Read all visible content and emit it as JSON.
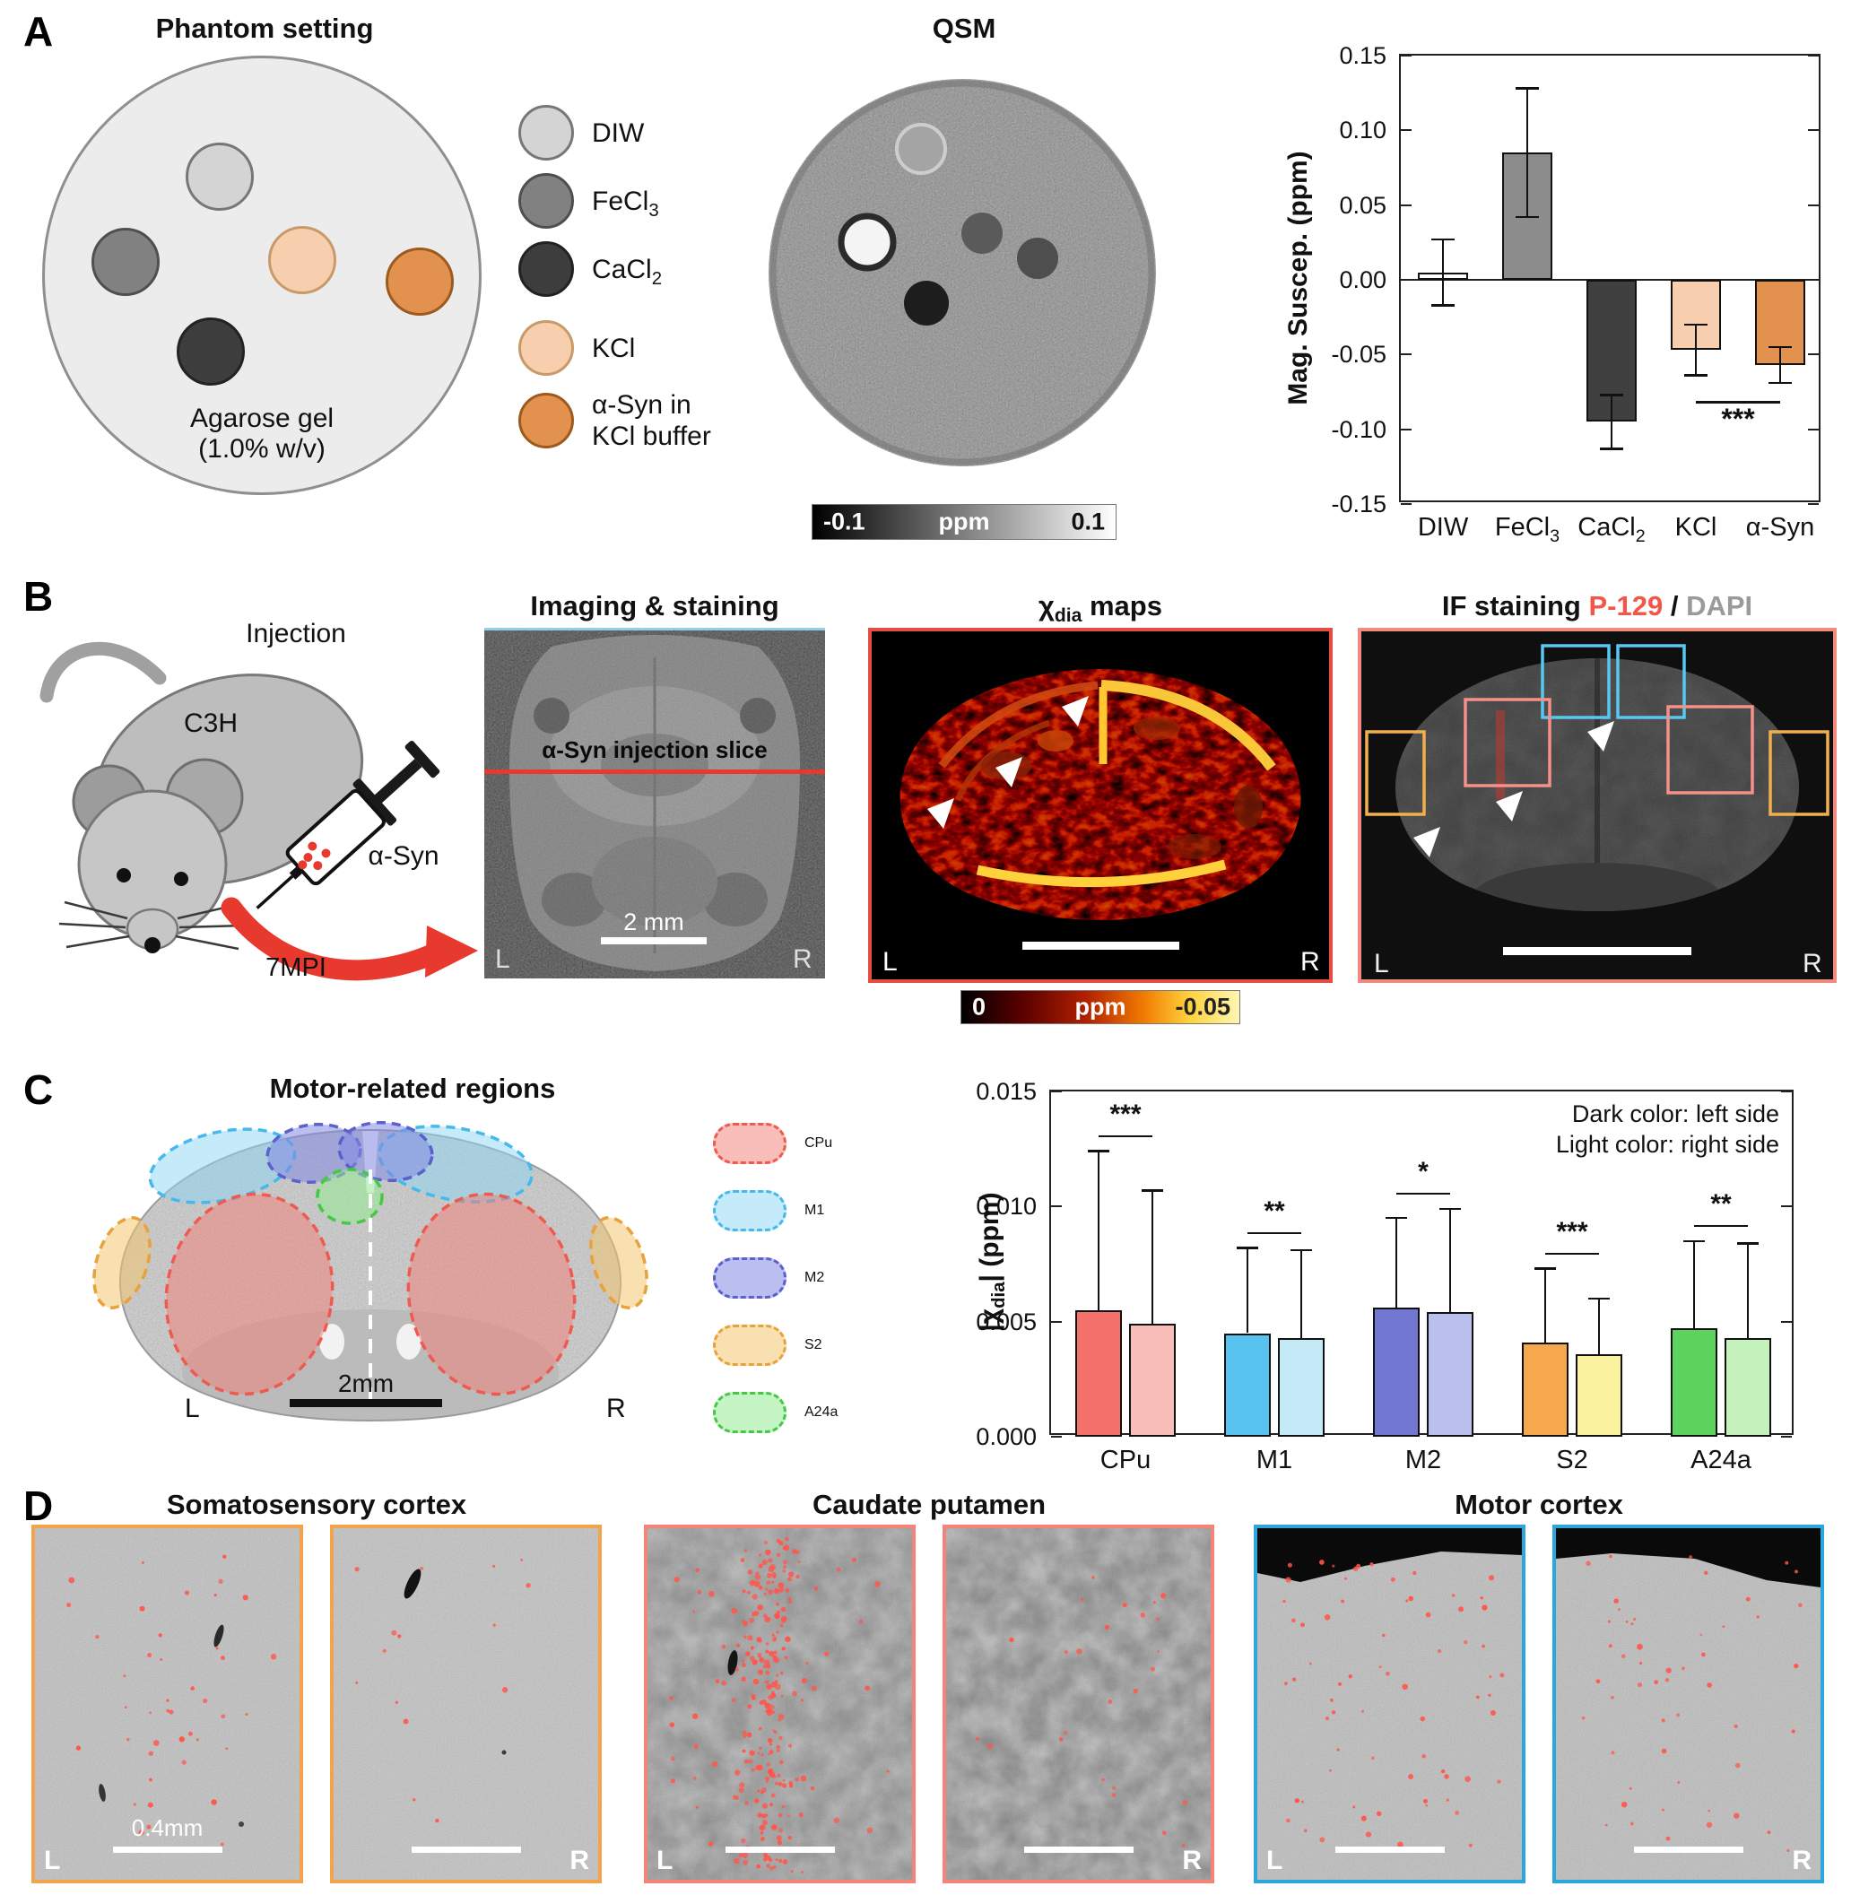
{
  "panels": {
    "a": "A",
    "b": "B",
    "c": "C",
    "d": "D"
  },
  "panelA": {
    "phantom_title": "Phantom setting",
    "gel_line1": "Agarose gel",
    "gel_line2": "(1.0% w/v)",
    "legend": [
      {
        "base": "DIW",
        "sub": "",
        "line2": "",
        "color": "#d4d4d4",
        "edge": "#777777"
      },
      {
        "base": "FeCl",
        "sub": "3",
        "line2": "",
        "color": "#818181",
        "edge": "#4f4f4f"
      },
      {
        "base": "CaCl",
        "sub": "2",
        "line2": "",
        "color": "#3d3d3d",
        "edge": "#222222"
      },
      {
        "base": "KCl",
        "sub": "",
        "line2": "",
        "color": "#f8cfae",
        "edge": "#c89a6a"
      },
      {
        "base": "α-Syn in",
        "sub": "",
        "line2": "KCl buffer",
        "color": "#e2914f",
        "edge": "#9c5a1e"
      }
    ],
    "qsm_title": "QSM",
    "qsm_colorbar": {
      "min": "-0.1",
      "unit": "ppm",
      "max": "0.1"
    }
  },
  "panelB": {
    "injection": "Injection",
    "strain": "C3H",
    "asyn": "α-Syn",
    "timepoint": "7MPI",
    "mri_title": "Imaging & staining",
    "slice_label": "α-Syn injection slice",
    "mri_left": "L",
    "mri_right": "R",
    "mri_scale": "2 mm",
    "chi_title_pre": "χ",
    "chi_title_sub": "dia",
    "chi_title_post": " maps",
    "chi_left": "L",
    "chi_right": "R",
    "chi_colorbar": {
      "min": "0",
      "unit": "ppm",
      "max": "-0.05"
    },
    "if_title_pre": "IF staining ",
    "if_title_red": "P-129",
    "if_title_sep": " / ",
    "if_title_gray": "DAPI",
    "if_left": "L",
    "if_right": "R"
  },
  "panelC": {
    "title": "Motor-related regions",
    "left": "L",
    "right": "R",
    "scale": "2mm",
    "legend": [
      {
        "name": "CPu",
        "stroke": "#ee5a50",
        "fill": "rgba(243,125,117,0.5)"
      },
      {
        "name": "M1",
        "stroke": "#45b9ec",
        "fill": "rgba(140,216,246,0.5)"
      },
      {
        "name": "M2",
        "stroke": "#5a60cc",
        "fill": "rgba(132,138,228,0.55)"
      },
      {
        "name": "S2",
        "stroke": "#e8a23c",
        "fill": "rgba(243,198,112,0.55)"
      },
      {
        "name": "A24a",
        "stroke": "#46c846",
        "fill": "rgba(150,235,150,0.55)"
      }
    ]
  },
  "panelD": {
    "groups": [
      {
        "title": "Somatosensory cortex",
        "border": "#f2a44c",
        "images": [
          {
            "label": "L",
            "scale": "0.4mm",
            "dots": 42,
            "band": false,
            "seed": 11
          },
          {
            "label": "R",
            "scale": "",
            "dots": 15,
            "band": false,
            "seed": 22
          }
        ]
      },
      {
        "title": "Caudate putamen",
        "border": "#f4837a",
        "images": [
          {
            "label": "L",
            "scale": "",
            "dots": 260,
            "band": true,
            "seed": 33
          },
          {
            "label": "R",
            "scale": "",
            "dots": 26,
            "band": false,
            "seed": 44
          }
        ]
      },
      {
        "title": "Motor cortex",
        "border": "#2ba7de",
        "images": [
          {
            "label": "L",
            "scale": "",
            "dots": 70,
            "band": false,
            "seed": 55
          },
          {
            "label": "R",
            "scale": "",
            "dots": 52,
            "band": false,
            "seed": 66
          }
        ]
      }
    ]
  },
  "chart_data": [
    {
      "type": "bar",
      "title": "",
      "ylabel": "Mag. Suscep. (ppm)",
      "ylim": [
        -0.15,
        0.15
      ],
      "yticks": [
        "0.15",
        "0.10",
        "0.05",
        "0.00",
        "-0.05",
        "-0.10",
        "-0.15"
      ],
      "categories": [
        {
          "base": "DIW",
          "sub": ""
        },
        {
          "base": "FeCl",
          "sub": "3"
        },
        {
          "base": "CaCl",
          "sub": "2"
        },
        {
          "base": "KCl",
          "sub": ""
        },
        {
          "base": "α-Syn",
          "sub": ""
        }
      ],
      "values": [
        0.005,
        0.085,
        -0.095,
        -0.047,
        -0.057
      ],
      "errors": [
        0.022,
        0.043,
        0.018,
        0.017,
        0.012
      ],
      "bar_colors": [
        "#ffffff",
        "#8c8c8c",
        "#404040",
        "#f8cfae",
        "#e2914f"
      ],
      "significance": {
        "stars": "***",
        "from": 3,
        "to": 4
      }
    },
    {
      "type": "grouped-bar",
      "ylabel_pre": "|χ",
      "ylabel_sub": "dia",
      "ylabel_post": "| (ppm)",
      "ylim": [
        0,
        0.015
      ],
      "yticks": [
        "0.015",
        "0.010",
        "0.005",
        "0.000"
      ],
      "categories": [
        "CPu",
        "M1",
        "M2",
        "S2",
        "A24a"
      ],
      "series": [
        {
          "name": "left side (dark)",
          "values": [
            0.0055,
            0.0045,
            0.0056,
            0.0041,
            0.0047
          ],
          "errors": [
            0.0069,
            0.0037,
            0.0039,
            0.0032,
            0.0038
          ],
          "colors": [
            "#f4726b",
            "#58c3ee",
            "#7278d2",
            "#f6a94c",
            "#5cd35c"
          ]
        },
        {
          "name": "right side (light)",
          "values": [
            0.0049,
            0.0043,
            0.0054,
            0.0036,
            0.0043
          ],
          "errors": [
            0.0058,
            0.0038,
            0.0045,
            0.0024,
            0.0041
          ],
          "colors": [
            "#f9beb9",
            "#c4eaf8",
            "#bcc0ee",
            "#fbf2a0",
            "#c5f2bc"
          ]
        }
      ],
      "significance": [
        "***",
        "**",
        "*",
        "***",
        "**"
      ],
      "note_line1": "Dark color: left side",
      "note_line2": "Light color: right side"
    }
  ]
}
